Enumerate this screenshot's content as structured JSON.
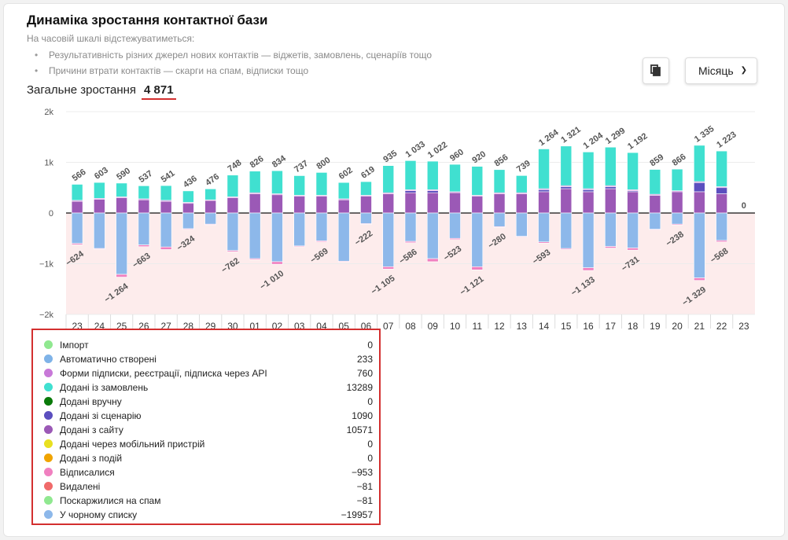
{
  "header": {
    "title": "Динаміка зростання контактної бази",
    "subtitle": "На часовій шкалі відстежуватиметься:",
    "bullets": [
      "Результативність різних джерел нових контактів — віджетів, замовлень, сценаріїв тощо",
      "Причини втрати контактів — скарги на спам, відписки тощо"
    ],
    "total_label": "Загальне зростання",
    "total_value": "4 871"
  },
  "toolbar": {
    "copy_icon": "copy-icon",
    "period_label": "Місяць",
    "period_icon": "chevron-down-icon"
  },
  "colors": {
    "orders": "#40e0d0",
    "site": "#9b59b6",
    "scenario": "#5b4fbf",
    "forms": "#c879d8",
    "blacklist": "#8db8ea",
    "unsub": "#f080c0",
    "deleted": "#f06a6a",
    "spam": "#90e890",
    "import": "#90e890",
    "auto": "#7fb3e8",
    "manual": "#0a7a0a",
    "mobile": "#e8e020",
    "events": "#f0a400",
    "negative_zone": "#fdecec",
    "grid": "#ececec"
  },
  "chart_data": {
    "type": "bar",
    "stacked": true,
    "ylim": [
      -2000,
      2000
    ],
    "yticks": [
      -2000,
      -1000,
      0,
      1000,
      2000
    ],
    "ytick_labels": [
      "−2k",
      "−1k",
      "0",
      "1k",
      "2k"
    ],
    "categories": [
      "23",
      "24",
      "25",
      "26",
      "27",
      "28",
      "29",
      "30",
      "01",
      "02",
      "03",
      "04",
      "05",
      "06",
      "07",
      "08",
      "09",
      "10",
      "11",
      "12",
      "13",
      "14",
      "15",
      "16",
      "17",
      "18",
      "19",
      "20",
      "21",
      "22",
      "23"
    ],
    "series": [
      {
        "name": "Додані з сайту",
        "color_key": "site",
        "values": [
          230,
          270,
          300,
          260,
          230,
          190,
          250,
          300,
          380,
          360,
          330,
          330,
          260,
          330,
          380,
          400,
          400,
          400,
          330,
          380,
          380,
          420,
          480,
          420,
          480,
          420,
          350,
          420,
          420,
          380,
          0
        ]
      },
      {
        "name": "Додані зі сценарію",
        "color_key": "scenario",
        "values": [
          0,
          0,
          0,
          0,
          0,
          0,
          0,
          0,
          0,
          0,
          0,
          0,
          0,
          0,
          0,
          40,
          40,
          0,
          0,
          0,
          0,
          40,
          40,
          40,
          40,
          20,
          0,
          0,
          180,
          120,
          0
        ]
      },
      {
        "name": "Форми підписки, реєстрації, підписка через API",
        "color_key": "forms",
        "values": [
          20,
          20,
          20,
          20,
          20,
          20,
          10,
          20,
          20,
          20,
          20,
          20,
          20,
          20,
          20,
          20,
          20,
          20,
          20,
          20,
          20,
          20,
          20,
          20,
          20,
          20,
          20,
          20,
          20,
          20,
          0
        ]
      },
      {
        "name": "Додані із замовлень",
        "color_key": "orders",
        "values": [
          316,
          313,
          270,
          257,
          291,
          226,
          216,
          428,
          426,
          454,
          387,
          450,
          322,
          269,
          535,
          573,
          562,
          540,
          570,
          456,
          339,
          784,
          781,
          724,
          759,
          732,
          489,
          426,
          715,
          703,
          0
        ]
      },
      {
        "name": "У чорному списку",
        "color_key": "blacklist",
        "values": [
          -600,
          -700,
          -1210,
          -630,
          -670,
          -310,
          -220,
          -740,
          -900,
          -960,
          -650,
          -550,
          -950,
          -210,
          -1060,
          -560,
          -900,
          -500,
          -1060,
          -270,
          -460,
          -570,
          -700,
          -1080,
          -660,
          -690,
          -320,
          -220,
          -1280,
          -540,
          0
        ]
      },
      {
        "name": "Відписалися",
        "color_key": "unsub",
        "values": [
          -24,
          -10,
          -54,
          -33,
          -50,
          -14,
          -10,
          -22,
          -20,
          -50,
          -15,
          -19,
          -10,
          -12,
          -45,
          -26,
          -60,
          -23,
          -61,
          -10,
          -10,
          -23,
          -20,
          -53,
          -30,
          -41,
          -10,
          -18,
          -49,
          -28,
          0
        ]
      }
    ],
    "top_labels": [
      "566",
      "603",
      "590",
      "537",
      "541",
      "436",
      "476",
      "748",
      "826",
      "834",
      "737",
      "800",
      "602",
      "619",
      "935",
      "1 033",
      "1 022",
      "960",
      "920",
      "856",
      "739",
      "1 264",
      "1 321",
      "1 204",
      "1 299",
      "1 192",
      "859",
      "866",
      "1 335",
      "1 223",
      "0"
    ],
    "bottom_labels": [
      "−624",
      "",
      "−1 264",
      "−663",
      "",
      "−324",
      "",
      "−762",
      "",
      "−1 010",
      "",
      "−569",
      "",
      "−222",
      "−1 105",
      "−586",
      "",
      "−523",
      "−1 121",
      "−280",
      "",
      "−593",
      "",
      "−1 133",
      "",
      "−731",
      "",
      "−238",
      "−1 329",
      "−568",
      ""
    ],
    "legend": [
      {
        "label": "Імпорт",
        "value": "0",
        "color_key": "import"
      },
      {
        "label": "Автоматично створені",
        "value": "233",
        "color_key": "auto"
      },
      {
        "label": "Форми підписки, реєстрації, підписка через API",
        "value": "760",
        "color_key": "forms"
      },
      {
        "label": "Додані із замовлень",
        "value": "13289",
        "color_key": "orders"
      },
      {
        "label": "Додані вручну",
        "value": "0",
        "color_key": "manual"
      },
      {
        "label": "Додані зі сценарію",
        "value": "1090",
        "color_key": "scenario"
      },
      {
        "label": "Додані з сайту",
        "value": "10571",
        "color_key": "site"
      },
      {
        "label": "Додані через мобільний пристрій",
        "value": "0",
        "color_key": "mobile"
      },
      {
        "label": "Додані з подій",
        "value": "0",
        "color_key": "events"
      },
      {
        "label": "Відписалися",
        "value": "−953",
        "color_key": "unsub"
      },
      {
        "label": "Видалені",
        "value": "−81",
        "color_key": "deleted"
      },
      {
        "label": "Поскаржилися на спам",
        "value": "−81",
        "color_key": "spam"
      },
      {
        "label": "У чорному списку",
        "value": "−19957",
        "color_key": "blacklist"
      }
    ]
  }
}
